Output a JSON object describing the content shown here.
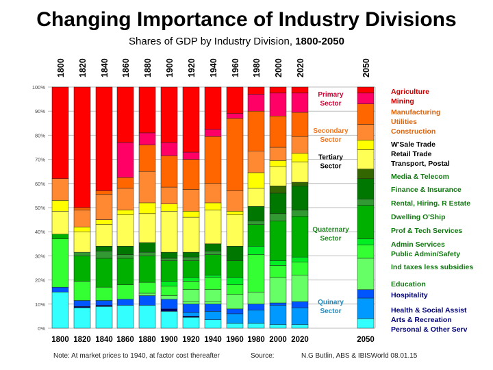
{
  "title": "Changing Importance of Industry Divisions",
  "subtitle": "Shares of GDP by Industry Division,",
  "subtitle_years": "1800-2050",
  "note": "Note:  At market prices to 1940, at factor cost  thereafter",
  "source_label": "Source:",
  "source": "N.G Butlin, ABS & IBISWorld  08.01.15",
  "chart_data": {
    "type": "bar",
    "stacked": true,
    "categories": [
      "1800",
      "1820",
      "1840",
      "1860",
      "1880",
      "1900",
      "1920",
      "1940",
      "1960",
      "1980",
      "2000",
      "2020",
      "2050"
    ],
    "ylim": [
      0,
      100
    ],
    "yticks": [
      "0%",
      "10%",
      "20%",
      "30%",
      "40%",
      "50%",
      "60%",
      "70%",
      "80%",
      "90%",
      "100%"
    ],
    "grid": true,
    "colors": {
      "red": "#ff0000",
      "pink": "#ff0066",
      "orange": "#ff6600",
      "lorange": "#ff8833",
      "yellow": "#ffff00",
      "lyellow": "#ffff55",
      "olive": "#336600",
      "dgreen": "#007700",
      "mgreen": "#339933",
      "green": "#00b000",
      "bgreen": "#00ee22",
      "lgreen": "#33ff33",
      "lgreen2": "#66ff66",
      "blue": "#0055ff",
      "blue2": "#0099ff",
      "dblue": "#000066",
      "cyan": "#33ffff"
    },
    "note": "segments are [color, cumulative share % at top of segment], bottom to top",
    "bars": [
      [
        [
          "cyan",
          15
        ],
        [
          "blue",
          17
        ],
        [
          "lgreen",
          37
        ],
        [
          "green",
          39
        ],
        [
          "lyellow",
          48.5
        ],
        [
          "yellow",
          53
        ],
        [
          "lorange",
          62
        ],
        [
          "red",
          100
        ]
      ],
      [
        [
          "cyan",
          8.5
        ],
        [
          "dblue",
          9
        ],
        [
          "blue",
          11.5
        ],
        [
          "lgreen",
          19.5
        ],
        [
          "green",
          30
        ],
        [
          "mgreen",
          31.5
        ],
        [
          "lyellow",
          40
        ],
        [
          "yellow",
          42
        ],
        [
          "lorange",
          49
        ],
        [
          "orange",
          50
        ],
        [
          "red",
          100
        ]
      ],
      [
        [
          "cyan",
          9
        ],
        [
          "dblue",
          9.5
        ],
        [
          "blue",
          11.5
        ],
        [
          "lgreen",
          17
        ],
        [
          "green",
          29
        ],
        [
          "mgreen",
          32
        ],
        [
          "dgreen",
          34
        ],
        [
          "lyellow",
          43
        ],
        [
          "yellow",
          45
        ],
        [
          "lorange",
          55.5
        ],
        [
          "orange",
          57
        ],
        [
          "red",
          100
        ]
      ],
      [
        [
          "cyan",
          9.5
        ],
        [
          "blue",
          12
        ],
        [
          "lgreen",
          18
        ],
        [
          "green",
          29
        ],
        [
          "mgreen",
          30.5
        ],
        [
          "dgreen",
          34
        ],
        [
          "lyellow",
          47
        ],
        [
          "yellow",
          49
        ],
        [
          "lorange",
          58
        ],
        [
          "orange",
          62.5
        ],
        [
          "pink",
          77
        ],
        [
          "red",
          100
        ]
      ],
      [
        [
          "cyan",
          9.5
        ],
        [
          "blue",
          13.5
        ],
        [
          "lgreen2",
          14.5
        ],
        [
          "lgreen",
          19
        ],
        [
          "green",
          30
        ],
        [
          "mgreen",
          31.5
        ],
        [
          "dgreen",
          35.5
        ],
        [
          "lyellow",
          47.5
        ],
        [
          "yellow",
          52
        ],
        [
          "lorange",
          65
        ],
        [
          "orange",
          76
        ],
        [
          "pink",
          81
        ],
        [
          "red",
          100
        ]
      ],
      [
        [
          "cyan",
          7
        ],
        [
          "dblue",
          8
        ],
        [
          "blue",
          12
        ],
        [
          "lgreen2",
          13.5
        ],
        [
          "lgreen",
          17.5
        ],
        [
          "bgreen",
          19.5
        ],
        [
          "green",
          28
        ],
        [
          "mgreen",
          29
        ],
        [
          "dgreen",
          31.5
        ],
        [
          "lyellow",
          48.5
        ],
        [
          "yellow",
          51.5
        ],
        [
          "lorange",
          58.5
        ],
        [
          "orange",
          71.5
        ],
        [
          "pink",
          77
        ],
        [
          "red",
          100
        ]
      ],
      [
        [
          "cyan",
          4.5
        ],
        [
          "dblue",
          5
        ],
        [
          "blue2",
          6.5
        ],
        [
          "blue",
          10
        ],
        [
          "lgreen2",
          11
        ],
        [
          "lgreen2",
          16
        ],
        [
          "lgreen",
          19.5
        ],
        [
          "bgreen",
          21
        ],
        [
          "green",
          28
        ],
        [
          "mgreen",
          29.5
        ],
        [
          "dgreen",
          31.5
        ],
        [
          "lyellow",
          46
        ],
        [
          "yellow",
          48.5
        ],
        [
          "lorange",
          57.5
        ],
        [
          "orange",
          70
        ],
        [
          "pink",
          73
        ],
        [
          "red",
          100
        ]
      ],
      [
        [
          "cyan",
          3.5
        ],
        [
          "blue2",
          7
        ],
        [
          "blue",
          10
        ],
        [
          "lgreen2",
          11
        ],
        [
          "lgreen2",
          16
        ],
        [
          "lgreen",
          21
        ],
        [
          "bgreen",
          22
        ],
        [
          "green",
          30.5
        ],
        [
          "mgreen",
          32
        ],
        [
          "dgreen",
          35
        ],
        [
          "lyellow",
          49
        ],
        [
          "yellow",
          52
        ],
        [
          "lorange",
          60
        ],
        [
          "orange",
          79.5
        ],
        [
          "pink",
          82.5
        ],
        [
          "red",
          100
        ]
      ],
      [
        [
          "cyan",
          2
        ],
        [
          "blue2",
          6
        ],
        [
          "blue",
          8
        ],
        [
          "lgreen2",
          14
        ],
        [
          "lgreen",
          18
        ],
        [
          "bgreen",
          21
        ],
        [
          "green",
          28
        ],
        [
          "dgreen",
          34
        ],
        [
          "lyellow",
          47
        ],
        [
          "yellow",
          48.5
        ],
        [
          "lorange",
          57
        ],
        [
          "orange",
          87
        ],
        [
          "pink",
          89
        ],
        [
          "red",
          100
        ]
      ],
      [
        [
          "cyan",
          2
        ],
        [
          "blue2",
          7.5
        ],
        [
          "blue",
          10
        ],
        [
          "lgreen2",
          15
        ],
        [
          "lgreen",
          30.5
        ],
        [
          "bgreen",
          34
        ],
        [
          "green",
          43
        ],
        [
          "mgreen",
          44.5
        ],
        [
          "dgreen",
          50.5
        ],
        [
          "lyellow",
          58
        ],
        [
          "yellow",
          64.5
        ],
        [
          "lorange",
          73.5
        ],
        [
          "orange",
          90
        ],
        [
          "pink",
          97
        ],
        [
          "red",
          100
        ]
      ],
      [
        [
          "cyan",
          1.5
        ],
        [
          "blue2",
          9.5
        ],
        [
          "blue",
          10.5
        ],
        [
          "lgreen2",
          21
        ],
        [
          "lgreen",
          26
        ],
        [
          "bgreen",
          28
        ],
        [
          "green",
          44.5
        ],
        [
          "mgreen",
          47.5
        ],
        [
          "dgreen",
          56
        ],
        [
          "olive",
          59
        ],
        [
          "lyellow",
          67
        ],
        [
          "yellow",
          69.5
        ],
        [
          "lorange",
          75
        ],
        [
          "orange",
          88
        ],
        [
          "pink",
          97.5
        ],
        [
          "red",
          100
        ]
      ],
      [
        [
          "cyan",
          1.5
        ],
        [
          "blue2",
          8.5
        ],
        [
          "blue",
          11
        ],
        [
          "lgreen2",
          22
        ],
        [
          "lgreen",
          27.5
        ],
        [
          "bgreen",
          29.5
        ],
        [
          "green",
          46.5
        ],
        [
          "mgreen",
          49
        ],
        [
          "dgreen",
          59
        ],
        [
          "olive",
          60.5
        ],
        [
          "lyellow",
          69
        ],
        [
          "yellow",
          72.5
        ],
        [
          "lorange",
          79.5
        ],
        [
          "orange",
          89.5
        ],
        [
          "pink",
          97.5
        ],
        [
          "red",
          100
        ]
      ],
      [
        [
          "cyan",
          4
        ],
        [
          "blue2",
          12.5
        ],
        [
          "blue",
          16
        ],
        [
          "lgreen2",
          29
        ],
        [
          "lgreen",
          34.5
        ],
        [
          "bgreen",
          37
        ],
        [
          "green",
          51
        ],
        [
          "mgreen",
          53.5
        ],
        [
          "dgreen",
          62
        ],
        [
          "olive",
          66
        ],
        [
          "lyellow",
          74
        ],
        [
          "yellow",
          78
        ],
        [
          "lorange",
          84.5
        ],
        [
          "orange",
          93
        ],
        [
          "pink",
          97.5
        ],
        [
          "red",
          100
        ]
      ]
    ],
    "sector_labels": [
      {
        "text1": "Primary",
        "text2": "Sector",
        "color": "#cc0033",
        "level": 96
      },
      {
        "text1": "Secondary",
        "text2": "Sector",
        "color": "#ee7722",
        "level": 81
      },
      {
        "text1": "Tertiary",
        "text2": "Sector",
        "color": "#000000",
        "level": 70
      },
      {
        "text1": "Quaternary",
        "text2": "Sector",
        "color": "#228822",
        "level": 40
      },
      {
        "text1": "Quinary",
        "text2": "Sector",
        "color": "#2288bb",
        "level": 10
      }
    ],
    "legend": [
      {
        "lines": [
          "Agriculture",
          "Mining"
        ],
        "color": "#cc0000"
      },
      {
        "lines": [
          "Manufacturing",
          "Utilities",
          "Construction"
        ],
        "color": "#dd6611"
      },
      {
        "lines": [
          "W'Sale Trade",
          "Retail Trade",
          "Transport, Postal"
        ],
        "color": "#000000"
      },
      {
        "lines": [
          "Media & Telecom"
        ],
        "color": "#117711"
      },
      {
        "lines": [
          "Finance & Insurance"
        ],
        "color": "#117711"
      },
      {
        "lines": [
          "Rental, Hiring. R Estate"
        ],
        "color": "#117711"
      },
      {
        "lines": [
          "Dwelling O'Ship"
        ],
        "color": "#117711"
      },
      {
        "lines": [
          "Prof & Tech Services"
        ],
        "color": "#117711"
      },
      {
        "lines": [
          "Admin Services",
          "Public Admin/Safety"
        ],
        "color": "#117711"
      },
      {
        "lines": [
          "Ind taxes less subsidies"
        ],
        "color": "#117711"
      },
      {
        "lines": [
          "Education"
        ],
        "color": "#117711"
      },
      {
        "lines": [
          "Hospitality"
        ],
        "color": "#000077"
      },
      {
        "lines": [
          "Health & Social Assist",
          "Arts & Recreation",
          "Personal & Other Serv"
        ],
        "color": "#000077"
      }
    ]
  }
}
